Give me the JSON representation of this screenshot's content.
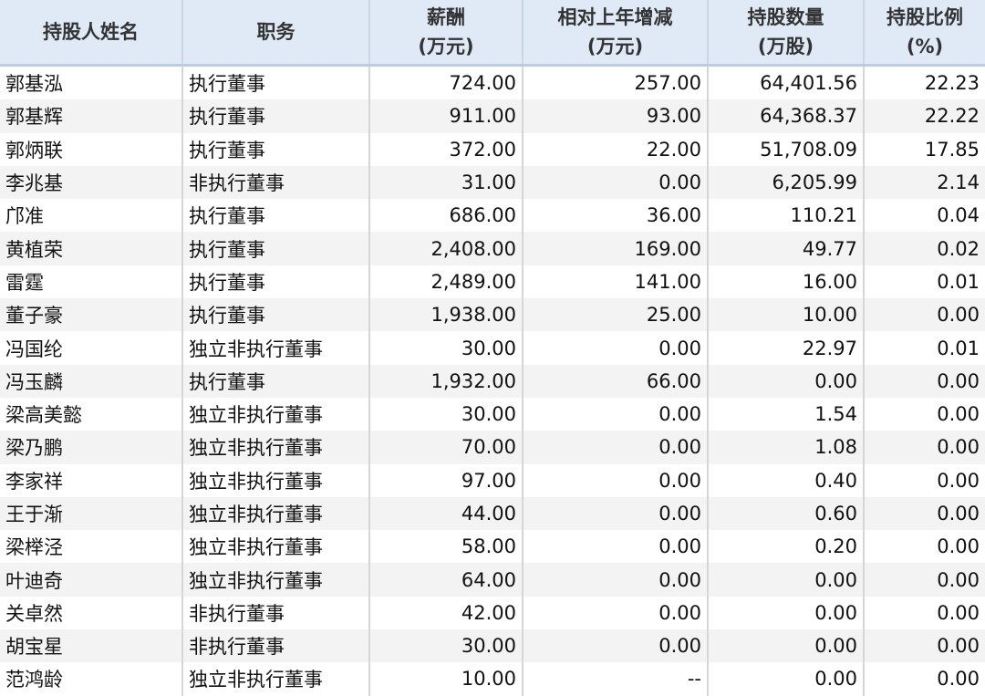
{
  "headers": [
    {
      "line1": "持股人姓名",
      "line2": ""
    },
    {
      "line1": "职务",
      "line2": ""
    },
    {
      "line1": "薪酬",
      "line2": "(万元)"
    },
    {
      "line1": "相对上年增减",
      "line2": "(万元)"
    },
    {
      "line1": "持股数量",
      "line2": "(万股)"
    },
    {
      "line1": "持股比例",
      "line2": "(%)"
    }
  ],
  "rows": [
    [
      "郭基泓",
      "执行董事",
      "724.00",
      "257.00",
      "64,401.56",
      "22.23"
    ],
    [
      "郭基辉",
      "执行董事",
      "911.00",
      "93.00",
      "64,368.37",
      "22.22"
    ],
    [
      "郭炳联",
      "执行董事",
      "372.00",
      "22.00",
      "51,708.09",
      "17.85"
    ],
    [
      "李兆基",
      "非执行董事",
      "31.00",
      "0.00",
      "6,205.99",
      "2.14"
    ],
    [
      "邝准",
      "执行董事",
      "686.00",
      "36.00",
      "110.21",
      "0.04"
    ],
    [
      "黄植荣",
      "执行董事",
      "2,408.00",
      "169.00",
      "49.77",
      "0.02"
    ],
    [
      "雷霆",
      "执行董事",
      "2,489.00",
      "141.00",
      "16.00",
      "0.01"
    ],
    [
      "董子豪",
      "执行董事",
      "1,938.00",
      "25.00",
      "10.00",
      "0.00"
    ],
    [
      "冯国纶",
      "独立非执行董事",
      "30.00",
      "0.00",
      "22.97",
      "0.01"
    ],
    [
      "冯玉麟",
      "执行董事",
      "1,932.00",
      "66.00",
      "0.00",
      "0.00"
    ],
    [
      "梁高美懿",
      "独立非执行董事",
      "30.00",
      "0.00",
      "1.54",
      "0.00"
    ],
    [
      "梁乃鹏",
      "独立非执行董事",
      "70.00",
      "0.00",
      "1.08",
      "0.00"
    ],
    [
      "李家祥",
      "独立非执行董事",
      "97.00",
      "0.00",
      "0.40",
      "0.00"
    ],
    [
      "王于渐",
      "独立非执行董事",
      "44.00",
      "0.00",
      "0.60",
      "0.00"
    ],
    [
      "梁榉泾",
      "独立非执行董事",
      "58.00",
      "0.00",
      "0.20",
      "0.00"
    ],
    [
      "叶迪奇",
      "独立非执行董事",
      "64.00",
      "0.00",
      "0.00",
      "0.00"
    ],
    [
      "关卓然",
      "非执行董事",
      "42.00",
      "0.00",
      "0.00",
      "0.00"
    ],
    [
      "胡宝星",
      "非执行董事",
      "30.00",
      "0.00",
      "0.00",
      "0.00"
    ],
    [
      "范鸿龄",
      "独立非执行董事",
      "10.00",
      "--",
      "0.00",
      "0.00"
    ]
  ]
}
